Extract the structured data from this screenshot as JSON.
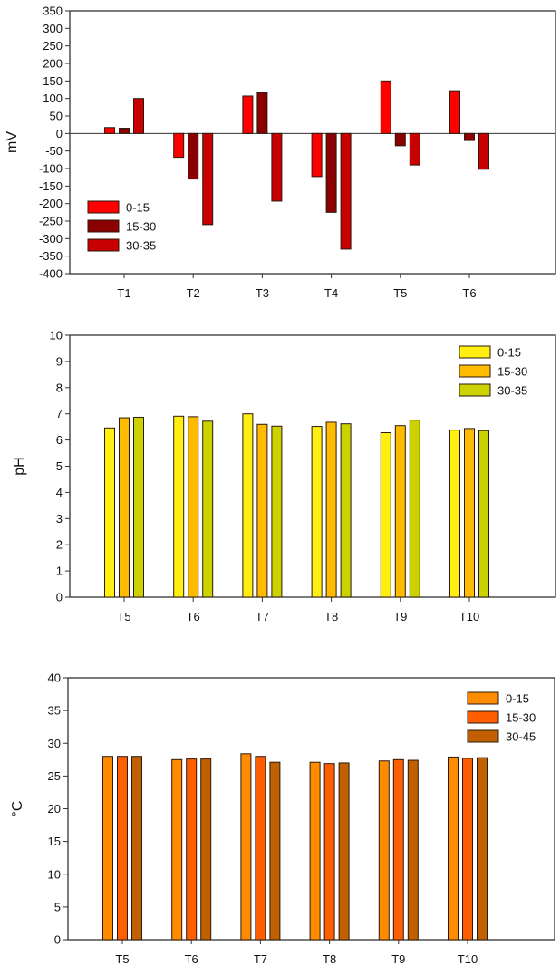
{
  "chart_data": [
    {
      "type": "bar",
      "title": "",
      "xlabel": "",
      "ylabel": "mV",
      "ylim": [
        -400,
        350
      ],
      "yticks": [
        350,
        300,
        250,
        200,
        150,
        100,
        50,
        0,
        -50,
        -100,
        -150,
        -200,
        -250,
        -300,
        -350,
        -400
      ],
      "categories": [
        "T1",
        "T2",
        "T3",
        "T4",
        "T5",
        "T6"
      ],
      "legend_position": "bottom-left",
      "zero_line": true,
      "series": [
        {
          "name": "0-15",
          "color": "#FF0000",
          "values": [
            17,
            -68,
            107,
            -123,
            150,
            122
          ]
        },
        {
          "name": "15-30",
          "color": "#8B0000",
          "values": [
            15,
            -130,
            116,
            -225,
            -35,
            -20
          ]
        },
        {
          "name": "30-35",
          "color": "#C80000",
          "values": [
            100,
            -260,
            -193,
            -330,
            -90,
            -102
          ]
        }
      ]
    },
    {
      "type": "bar",
      "title": "",
      "xlabel": "",
      "ylabel": "pH",
      "ylim": [
        0,
        10
      ],
      "yticks": [
        10,
        9,
        8,
        7,
        6,
        5,
        4,
        3,
        2,
        1,
        0
      ],
      "categories": [
        "T5",
        "T6",
        "T7",
        "T8",
        "T9",
        "T10"
      ],
      "legend_position": "top-right",
      "zero_line": false,
      "series": [
        {
          "name": "0-15",
          "color": "#FFEE10",
          "values": [
            6.46,
            6.91,
            7.0,
            6.52,
            6.28,
            6.38
          ]
        },
        {
          "name": "15-30",
          "color": "#FFBB00",
          "values": [
            6.85,
            6.89,
            6.6,
            6.68,
            6.55,
            6.44
          ]
        },
        {
          "name": "30-35",
          "color": "#CCD200",
          "values": [
            6.87,
            6.72,
            6.53,
            6.62,
            6.76,
            6.36
          ]
        }
      ]
    },
    {
      "type": "bar",
      "title": "",
      "xlabel": "",
      "ylabel": "°C",
      "ylim": [
        0,
        40
      ],
      "yticks": [
        40,
        35,
        30,
        25,
        20,
        15,
        10,
        5,
        0
      ],
      "categories": [
        "T5",
        "T6",
        "T7",
        "T8",
        "T9",
        "T10"
      ],
      "legend_position": "top-right",
      "zero_line": false,
      "series": [
        {
          "name": "0-15",
          "color": "#FF8C00",
          "values": [
            28.0,
            27.5,
            28.4,
            27.1,
            27.3,
            27.9
          ]
        },
        {
          "name": "15-30",
          "color": "#FF5F00",
          "values": [
            28.0,
            27.6,
            28.0,
            26.9,
            27.5,
            27.7
          ]
        },
        {
          "name": "30-45",
          "color": "#C06000",
          "values": [
            28.0,
            27.6,
            27.1,
            27.0,
            27.4,
            27.8
          ]
        }
      ]
    }
  ]
}
